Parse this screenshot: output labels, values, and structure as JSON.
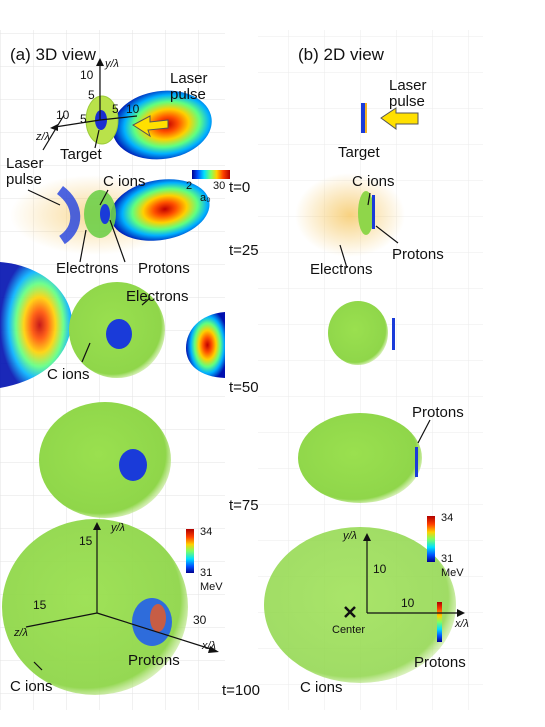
{
  "panels": {
    "a_title": "(a) 3D view",
    "b_title": "(b) 2D view"
  },
  "times": [
    "t=0",
    "t=25",
    "t=50",
    "t=75",
    "t=100"
  ],
  "labels": {
    "laser_pulse_a": "Laser\npulse",
    "laser_pulse_b": "Laser\npulse",
    "laser_pulse_a2": "Laser\npulse",
    "target_a": "Target",
    "target_b": "Target",
    "c_ions_a25": "C ions",
    "c_ions_b25": "C ions",
    "electrons_a25": "Electrons",
    "electrons_b25": "Electrons",
    "protons_a25": "Protons",
    "protons_b25": "Protons",
    "electrons_a50": "Electrons",
    "c_ions_a50": "C ions",
    "protons_b75": "Protons",
    "protons_a100": "Protons",
    "c_ions_a100": "C ions",
    "c_ions_b100": "C ions",
    "protons_b100": "Protons",
    "center_b100": "Center"
  },
  "axes": {
    "y_lambda": "y/λ",
    "z_lambda": "z/λ",
    "x_lambda": "x/λ",
    "t0_y10": "10",
    "t0_y5": "5",
    "t0_z10": "10",
    "t0_z5": "5",
    "t0_x5": "5",
    "t0_x10": "10",
    "a100_y15": "15",
    "a100_z15": "15",
    "a100_x30": "30",
    "b100_y10": "10",
    "b100_x10": "10"
  },
  "colorbars": {
    "a0": {
      "min": "2",
      "max": "30",
      "unit": "a₀"
    },
    "energy_a": {
      "max": "34",
      "min": "31",
      "unit": "MeV"
    },
    "energy_b": {
      "max": "34",
      "min": "31",
      "unit": "MeV"
    }
  },
  "colors": {
    "jet": [
      "#00008f",
      "#0000ff",
      "#00ffff",
      "#7fff7f",
      "#ffff00",
      "#ff0000",
      "#800000"
    ],
    "carbon": "#8fd64a",
    "electron": "#f5b324",
    "proton": "#1a3bd9",
    "arrow": "#ffe000",
    "grid": "#d8d8d8"
  }
}
